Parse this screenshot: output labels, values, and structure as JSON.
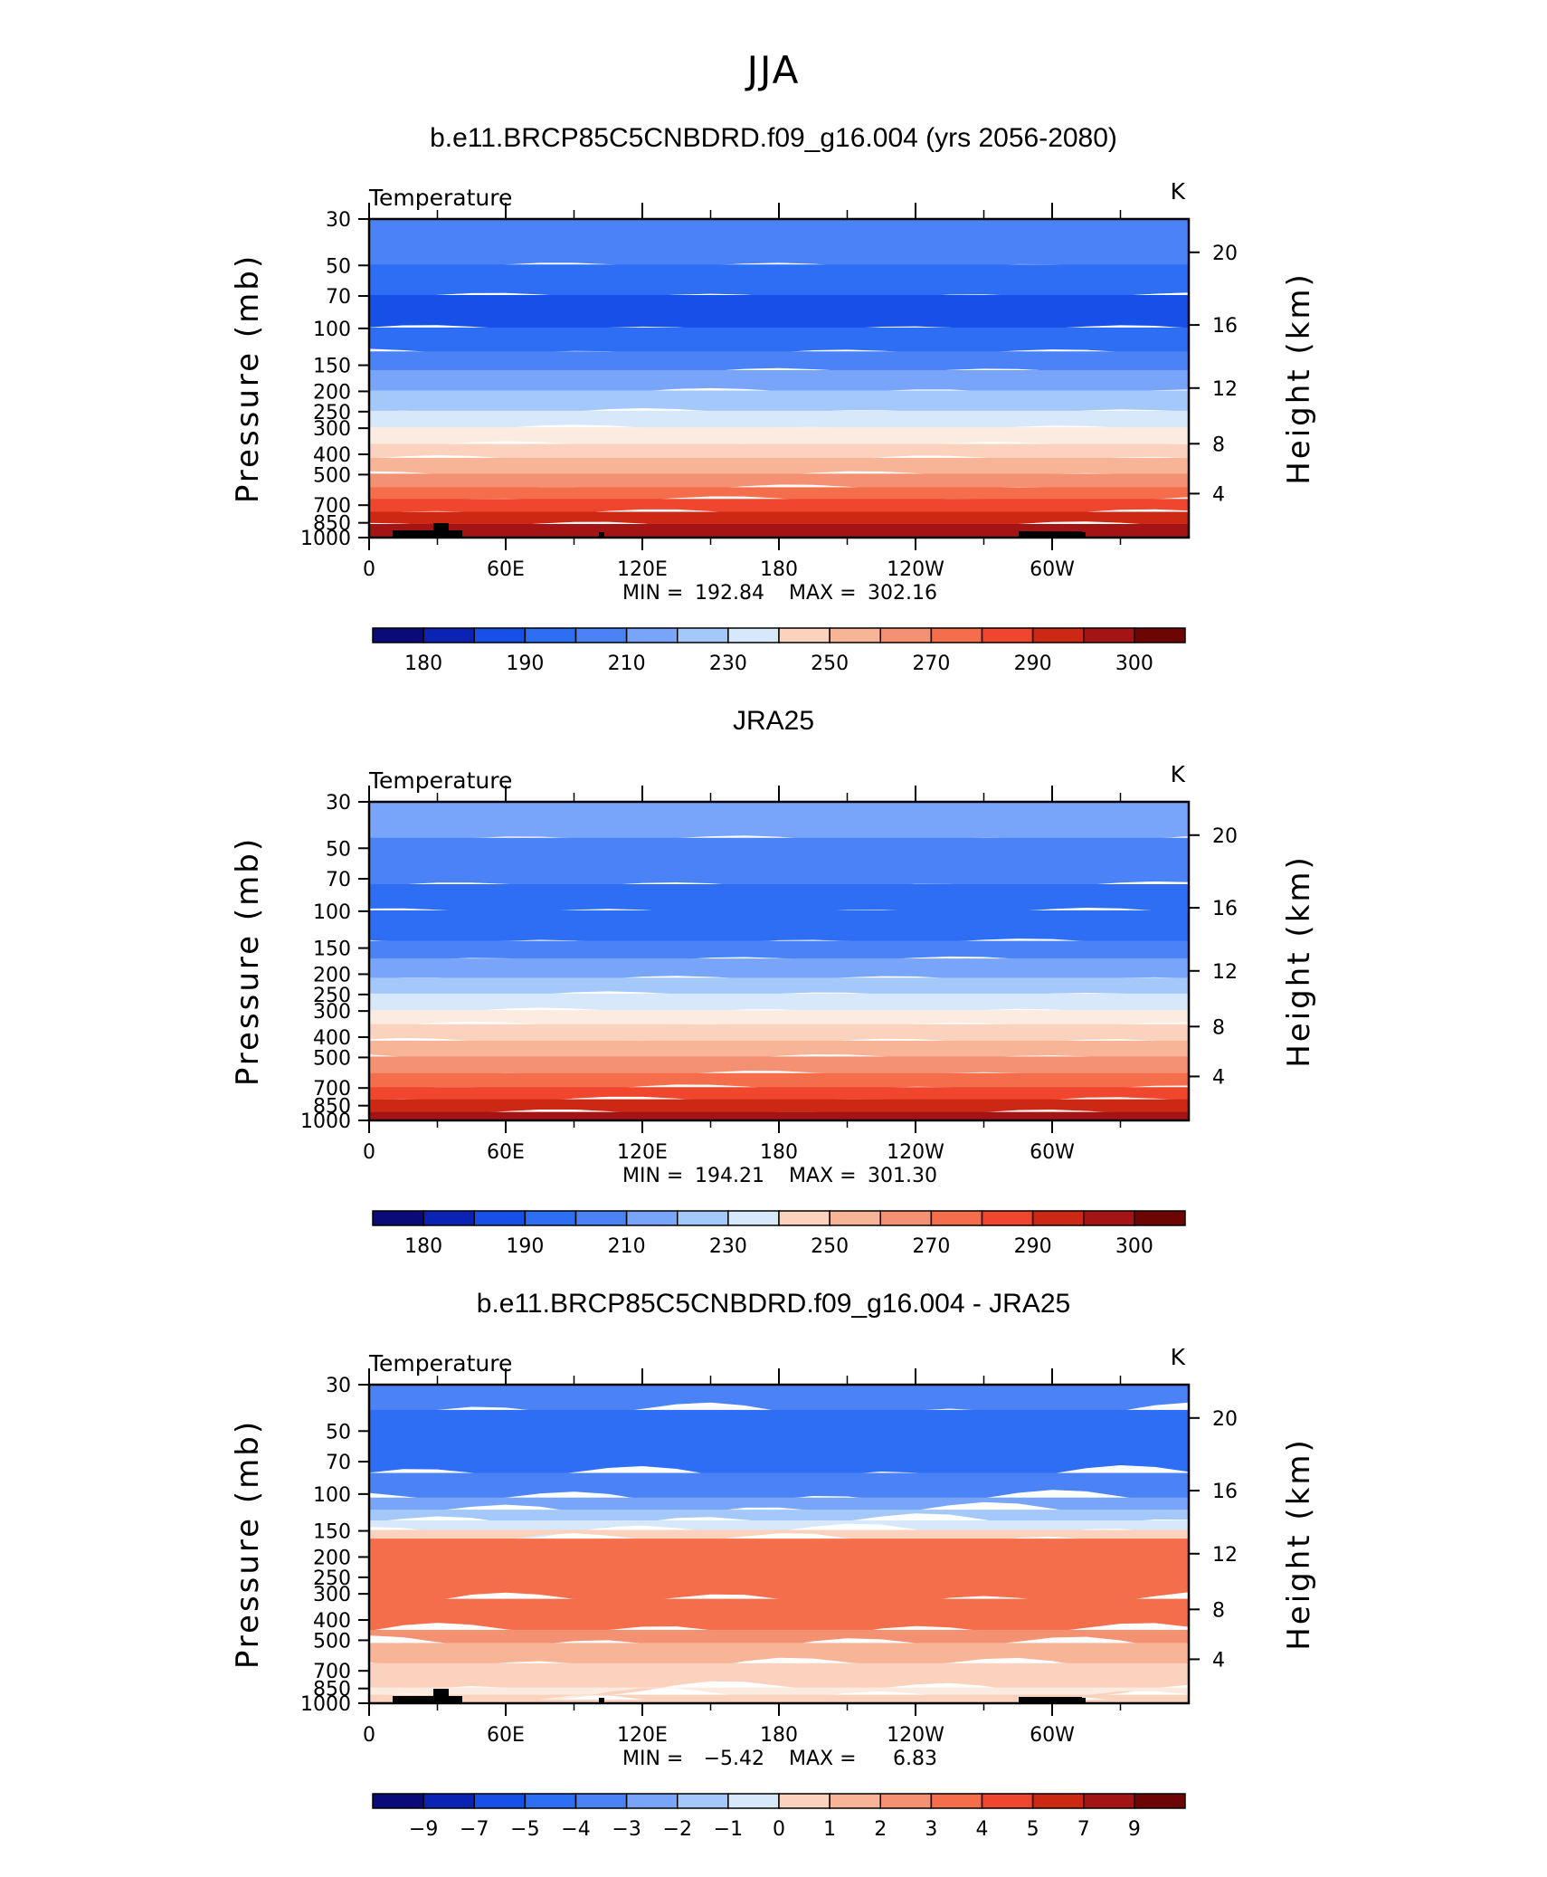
{
  "figure": {
    "suptitle": "JJA"
  },
  "panels": [
    {
      "title": "b.e11.BRCP85C5CNBDRD.f09_g16.004 (yrs 2056-2080)",
      "left_label": "Temperature",
      "right_label": "K",
      "stats": {
        "min_label": "MIN =",
        "min_value": "192.84",
        "max_label": "MAX =",
        "max_value": "302.16"
      },
      "colorbar_labels": [
        "180",
        "190",
        "210",
        "230",
        "250",
        "270",
        "290",
        "300"
      ]
    },
    {
      "title": "JRA25",
      "left_label": "Temperature",
      "right_label": "K",
      "stats": {
        "min_label": "MIN =",
        "min_value": "194.21",
        "max_label": "MAX =",
        "max_value": "301.30"
      },
      "colorbar_labels": [
        "180",
        "190",
        "210",
        "230",
        "250",
        "270",
        "290",
        "300"
      ]
    },
    {
      "title": "b.e11.BRCP85C5CNBDRD.f09_g16.004 - JRA25",
      "left_label": "Temperature",
      "right_label": "K",
      "stats": {
        "min_label": "MIN =",
        "min_value": "−5.42",
        "max_label": "MAX =",
        "max_value": "6.83"
      },
      "colorbar_labels": [
        "−9",
        "−7",
        "−5",
        "−4",
        "−3",
        "−2",
        "−1",
        "0",
        "1",
        "2",
        "3",
        "4",
        "5",
        "7",
        "9"
      ]
    }
  ],
  "chart_data": [
    {
      "type": "heatmap",
      "title": "b.e11.BRCP85C5CNBDRD.f09_g16.004 (yrs 2056-2080)",
      "xlabel": "",
      "ylabel": "Pressure (mb)",
      "y2label": "Height (km)",
      "x_ticks": [
        "0",
        "60E",
        "120E",
        "180",
        "120W",
        "60W"
      ],
      "y_ticks": [
        "30",
        "50",
        "70",
        "100",
        "150",
        "200",
        "250",
        "300",
        "400",
        "500",
        "700",
        "850",
        "1000"
      ],
      "y2_ticks": [
        "20",
        "16",
        "12",
        "8",
        "4"
      ],
      "units": "K",
      "min": 192.84,
      "max": 302.16,
      "colorbar_levels": [
        180,
        190,
        210,
        230,
        250,
        270,
        290,
        300
      ],
      "colors": [
        "#0a0a78",
        "#0a23b4",
        "#1650e6",
        "#2d6ef5",
        "#4b82f5",
        "#78a5fa",
        "#a5c8fa",
        "#d7e8fa",
        "#fbebe0",
        "#fad2bd",
        "#f8b496",
        "#f59173",
        "#f46e4b",
        "#f0462d",
        "#cd2814",
        "#a51414",
        "#6e0505"
      ]
    },
    {
      "type": "heatmap",
      "title": "JRA25",
      "xlabel": "",
      "ylabel": "Pressure (mb)",
      "y2label": "Height (km)",
      "x_ticks": [
        "0",
        "60E",
        "120E",
        "180",
        "120W",
        "60W"
      ],
      "y_ticks": [
        "30",
        "50",
        "70",
        "100",
        "150",
        "200",
        "250",
        "300",
        "400",
        "500",
        "700",
        "850",
        "1000"
      ],
      "y2_ticks": [
        "20",
        "16",
        "12",
        "8",
        "4"
      ],
      "units": "K",
      "min": 194.21,
      "max": 301.3,
      "colorbar_levels": [
        180,
        190,
        210,
        230,
        250,
        270,
        290,
        300
      ],
      "colors": [
        "#0a0a78",
        "#0a23b4",
        "#1650e6",
        "#2d6ef5",
        "#4b82f5",
        "#78a5fa",
        "#a5c8fa",
        "#d7e8fa",
        "#fbebe0",
        "#fad2bd",
        "#f8b496",
        "#f59173",
        "#f46e4b",
        "#f0462d",
        "#cd2814",
        "#a51414",
        "#6e0505"
      ]
    },
    {
      "type": "heatmap",
      "title": "b.e11.BRCP85C5CNBDRD.f09_g16.004 - JRA25",
      "xlabel": "",
      "ylabel": "Pressure (mb)",
      "y2label": "Height (km)",
      "x_ticks": [
        "0",
        "60E",
        "120E",
        "180",
        "120W",
        "60W"
      ],
      "y_ticks": [
        "30",
        "50",
        "70",
        "100",
        "150",
        "200",
        "250",
        "300",
        "400",
        "500",
        "700",
        "850",
        "1000"
      ],
      "y2_ticks": [
        "20",
        "16",
        "12",
        "8",
        "4"
      ],
      "units": "K",
      "min": -5.42,
      "max": 6.83,
      "colorbar_levels": [
        -9,
        -7,
        -5,
        -4,
        -3,
        -2,
        -1,
        0,
        1,
        2,
        3,
        4,
        5,
        7,
        9
      ],
      "colors": [
        "#0a0a78",
        "#0a23b4",
        "#1650e6",
        "#2d6ef5",
        "#4b82f5",
        "#78a5fa",
        "#a5c8fa",
        "#d7e8fa",
        "#fbebe0",
        "#fad2bd",
        "#f8b496",
        "#f59173",
        "#f46e4b",
        "#f0462d",
        "#cd2814",
        "#a51414",
        "#6e0505"
      ]
    }
  ]
}
